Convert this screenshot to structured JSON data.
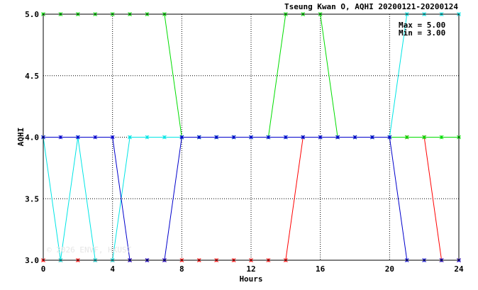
{
  "chart_data": {
    "type": "line",
    "title": "Tseung Kwan O, AQHI 20200121-20200124",
    "xlabel": "Hours",
    "ylabel": "AQHI",
    "xlim": [
      0,
      24
    ],
    "ylim": [
      3.0,
      5.0
    ],
    "xticks": [
      "0",
      "4",
      "8",
      "12",
      "16",
      "20",
      "24"
    ],
    "yticks": [
      "3.0",
      "3.5",
      "4.0",
      "4.5",
      "5.0"
    ],
    "grid": true,
    "annotations": [
      "Max = 5.00",
      "Min = 3.00"
    ],
    "watermark": "© 2026 ENVF, HKUST",
    "x": [
      0,
      1,
      2,
      3,
      4,
      5,
      6,
      7,
      8,
      9,
      10,
      11,
      12,
      13,
      14,
      15,
      16,
      17,
      18,
      19,
      20,
      21,
      22,
      23,
      24
    ],
    "series": [
      {
        "color": "#ff0000",
        "values": [
          3,
          3,
          3,
          3,
          3,
          3,
          3,
          3,
          3,
          3,
          3,
          3,
          3,
          3,
          3,
          4,
          4,
          4,
          4,
          4,
          4,
          4,
          4,
          3,
          3
        ]
      },
      {
        "color": "#00dd00",
        "values": [
          5,
          5,
          5,
          5,
          5,
          5,
          5,
          5,
          4,
          4,
          4,
          4,
          4,
          4,
          5,
          5,
          5,
          4,
          4,
          4,
          4,
          4,
          4,
          4,
          4
        ]
      },
      {
        "color": "#00e5e5",
        "values": [
          4,
          3,
          4,
          3,
          3,
          4,
          4,
          4,
          4,
          4,
          4,
          4,
          4,
          4,
          4,
          4,
          4,
          4,
          4,
          4,
          4,
          5,
          5,
          5,
          5
        ]
      },
      {
        "color": "#0000cc",
        "values": [
          4,
          4,
          4,
          4,
          4,
          3,
          3,
          3,
          4,
          4,
          4,
          4,
          4,
          4,
          4,
          4,
          4,
          4,
          4,
          4,
          4,
          3,
          3,
          3,
          3
        ]
      }
    ]
  }
}
